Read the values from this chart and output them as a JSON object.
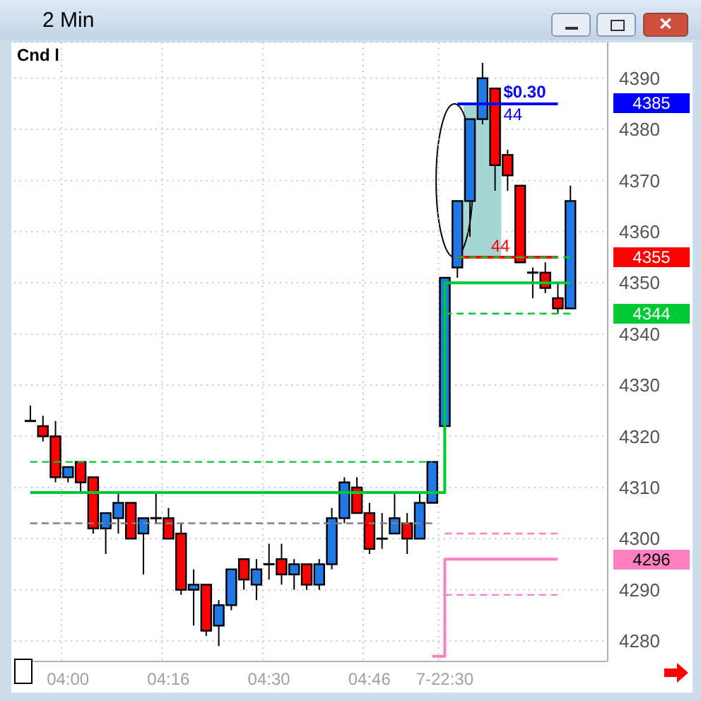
{
  "chart_data": {
    "type": "candlestick",
    "title": "2 Min",
    "categories": [
      null,
      null,
      null,
      "04:00",
      null,
      null,
      null,
      null,
      null,
      null,
      null,
      "04:16",
      null,
      null,
      null,
      null,
      null,
      null,
      null,
      "04:30",
      null,
      null,
      null,
      null,
      null,
      null,
      null,
      "04:46",
      null,
      null,
      null,
      null,
      null,
      "7-22:30",
      null,
      null,
      null,
      null,
      null,
      null,
      null,
      null,
      null,
      null
    ],
    "ohlc": [
      [
        4323,
        4326,
        4323,
        4323
      ],
      [
        4322,
        4324,
        4319,
        4320
      ],
      [
        4320,
        4323,
        4311,
        4312
      ],
      [
        4312,
        4314,
        4311,
        4314
      ],
      [
        4315,
        4315,
        4309,
        4311
      ],
      [
        4312,
        4312,
        4301,
        4302
      ],
      [
        4302,
        4305,
        4297,
        4305
      ],
      [
        4304,
        4309,
        4301,
        4307
      ],
      [
        4307,
        4307,
        4300,
        4300
      ],
      [
        4301,
        4304,
        4293,
        4304
      ],
      [
        4304,
        4309,
        4303,
        4304
      ],
      [
        4304,
        4306,
        4300,
        4300
      ],
      [
        4301,
        4303,
        4289,
        4290
      ],
      [
        4290,
        4294,
        4283,
        4291
      ],
      [
        4291,
        4291,
        4281,
        4282
      ],
      [
        4283,
        4288,
        4279,
        4287
      ],
      [
        4287,
        4294,
        4286,
        4294
      ],
      [
        4296,
        4296,
        4290,
        4292
      ],
      [
        4291,
        4296,
        4288,
        4294
      ],
      [
        4295,
        4299,
        4292,
        4295
      ],
      [
        4296,
        4299,
        4291,
        4293
      ],
      [
        4293,
        4296,
        4290,
        4295
      ],
      [
        4295,
        4295,
        4290,
        4291
      ],
      [
        4291,
        4296,
        4290,
        4295
      ],
      [
        4295,
        4306,
        4294,
        4304
      ],
      [
        4304,
        4312,
        4303,
        4311
      ],
      [
        4310,
        4312,
        4305,
        4305
      ],
      [
        4305,
        4307,
        4297,
        4298
      ],
      [
        4300,
        4305,
        4298,
        4300
      ],
      [
        4301,
        4309,
        4301,
        4304
      ],
      [
        4303,
        4305,
        4297,
        4300
      ],
      [
        4300,
        4309,
        4300,
        4307
      ],
      [
        4307,
        4315,
        4307,
        4315
      ],
      [
        4322,
        4351,
        4322,
        4351
      ],
      [
        4353,
        4366,
        4351,
        4366
      ],
      [
        4366,
        4382,
        4359,
        4382
      ],
      [
        4382,
        4393,
        4381,
        4390
      ],
      [
        4388,
        4388,
        4368,
        4373
      ],
      [
        4375,
        4376,
        4368,
        4371
      ],
      [
        4369,
        4369,
        4354,
        4354
      ],
      [
        4352,
        4353,
        4347,
        4352
      ],
      [
        4352,
        4354,
        4348,
        4349
      ],
      [
        4347,
        4350,
        4344,
        4345
      ],
      [
        4345,
        4369,
        4345,
        4366
      ]
    ],
    "colors": [
      "#000000",
      "#ff0000",
      "#ff0000",
      "#1e78e6",
      "#ff0000",
      "#ff0000",
      "#1e78e6",
      "#1e78e6",
      "#ff0000",
      "#1e78e6",
      "#000000",
      "#ff0000",
      "#ff0000",
      "#1e78e6",
      "#ff0000",
      "#1e78e6",
      "#1e78e6",
      "#ff0000",
      "#1e78e6",
      "#000000",
      "#ff0000",
      "#1e78e6",
      "#ff0000",
      "#1e78e6",
      "#1e78e6",
      "#1e78e6",
      "#ff0000",
      "#ff0000",
      "#000000",
      "#1e78e6",
      "#ff0000",
      "#1e78e6",
      "#1e78e6",
      "#1e78e6",
      "#1e78e6",
      "#1e78e6",
      "#1e78e6",
      "#ff0000",
      "#ff0000",
      "#ff0000",
      "#000000",
      "#ff0000",
      "#ff0000",
      "#1e78e6"
    ],
    "series": [
      {
        "type": "line",
        "color": "#ff0000",
        "line_style": "solid",
        "values": [
          null,
          null,
          null,
          null,
          null,
          null,
          null,
          null,
          null,
          null,
          null,
          null,
          null,
          null,
          null,
          null,
          null,
          null,
          null,
          null,
          null,
          null,
          null,
          null,
          null,
          null,
          null,
          null,
          null,
          null,
          null,
          null,
          null,
          null,
          4355,
          4355,
          4355,
          4355,
          4355,
          4355,
          4355,
          4355,
          4355,
          null
        ]
      },
      {
        "type": "line",
        "color": "#0000ff",
        "line_style": "solid",
        "values": [
          null,
          null,
          null,
          null,
          null,
          null,
          null,
          null,
          null,
          null,
          null,
          null,
          null,
          null,
          null,
          null,
          null,
          null,
          null,
          null,
          null,
          null,
          null,
          null,
          null,
          null,
          null,
          null,
          null,
          null,
          null,
          null,
          null,
          null,
          4385,
          4385,
          4385,
          4385,
          4385,
          4385,
          4385,
          4385,
          4385,
          null
        ]
      },
      {
        "type": "step",
        "color": "#00c832",
        "line_style": "solid",
        "values": [
          4309,
          4309,
          4309,
          4309,
          4309,
          4309,
          4309,
          4309,
          4309,
          4309,
          4309,
          4309,
          4309,
          4309,
          4309,
          4309,
          4309,
          4309,
          4309,
          4309,
          4309,
          4309,
          4309,
          4309,
          4309,
          4309,
          4309,
          4309,
          4309,
          4309,
          4309,
          4309,
          4309,
          4350,
          4350,
          4350,
          4350,
          4350,
          4350,
          4350,
          4350,
          4350,
          4350,
          4350
        ]
      },
      {
        "type": "line",
        "color": "#00c832",
        "line_style": "dashed",
        "values": [
          4315,
          4315,
          4315,
          4315,
          4315,
          4315,
          4315,
          4315,
          4315,
          4315,
          4315,
          4315,
          4315,
          4315,
          4315,
          4315,
          4315,
          4315,
          4315,
          4315,
          4315,
          4315,
          4315,
          4315,
          4315,
          4315,
          4315,
          4315,
          4315,
          4315,
          4315,
          4315,
          4315,
          null,
          4355,
          4355,
          4355,
          4355,
          4355,
          4355,
          4355,
          4355,
          4355,
          4355
        ]
      },
      {
        "type": "line",
        "color": "#808080",
        "line_style": "dashed",
        "values": [
          4303,
          4303,
          4303,
          4303,
          4303,
          4303,
          4303,
          4303,
          4303,
          4303,
          4303,
          4303,
          4303,
          4303,
          4303,
          4303,
          4303,
          4303,
          4303,
          4303,
          4303,
          4303,
          4303,
          4303,
          4303,
          4303,
          4303,
          4303,
          4303,
          4303,
          4303,
          4303,
          4303,
          null,
          null,
          null,
          null,
          null,
          null,
          null,
          null,
          null,
          null,
          null
        ]
      },
      {
        "type": "line",
        "color": "#00c832",
        "line_style": "dashed",
        "values": [
          null,
          null,
          null,
          null,
          null,
          null,
          null,
          null,
          null,
          null,
          null,
          null,
          null,
          null,
          null,
          null,
          null,
          null,
          null,
          null,
          null,
          null,
          null,
          null,
          null,
          null,
          null,
          null,
          null,
          null,
          null,
          null,
          null,
          4344,
          4344,
          4344,
          4344,
          4344,
          4344,
          4344,
          4344,
          4344,
          4344,
          4344
        ]
      },
      {
        "type": "line",
        "color": "#ff80c0",
        "line_style": "dashed",
        "values": [
          null,
          null,
          null,
          null,
          null,
          null,
          null,
          null,
          null,
          null,
          null,
          null,
          null,
          null,
          null,
          null,
          null,
          null,
          null,
          null,
          null,
          null,
          null,
          null,
          null,
          null,
          null,
          null,
          null,
          null,
          null,
          null,
          null,
          4301,
          4301,
          4301,
          4301,
          4301,
          4301,
          4301,
          4301,
          4301,
          4301,
          null
        ]
      },
      {
        "type": "step",
        "color": "#ff80c0",
        "line_style": "solid",
        "values": [
          null,
          null,
          null,
          null,
          null,
          null,
          null,
          null,
          null,
          null,
          null,
          null,
          null,
          null,
          null,
          null,
          null,
          null,
          null,
          null,
          null,
          null,
          null,
          null,
          null,
          null,
          null,
          null,
          null,
          null,
          null,
          null,
          4277,
          4296,
          4296,
          4296,
          4296,
          4296,
          4296,
          4296,
          4296,
          4296,
          4296,
          null
        ]
      },
      {
        "type": "line",
        "color": "#ff80c0",
        "line_style": "dashed",
        "values": [
          null,
          null,
          null,
          null,
          null,
          null,
          null,
          null,
          null,
          null,
          null,
          null,
          null,
          null,
          null,
          null,
          null,
          null,
          null,
          null,
          null,
          null,
          null,
          null,
          null,
          null,
          null,
          null,
          null,
          null,
          null,
          null,
          null,
          4289,
          4289,
          4289,
          4289,
          4289,
          4289,
          4289,
          4289,
          4289,
          4289,
          null
        ]
      }
    ],
    "ylim": [
      4276,
      4397
    ],
    "yticks": [
      4280,
      4290,
      4300,
      4310,
      4320,
      4330,
      4340,
      4350,
      4360,
      4370,
      4380,
      4390
    ],
    "grid": true,
    "annotations": [
      "Cnd l",
      "$0.30",
      "44",
      "44",
      "4385",
      "4355",
      "4344",
      "4296",
      "✕"
    ]
  }
}
